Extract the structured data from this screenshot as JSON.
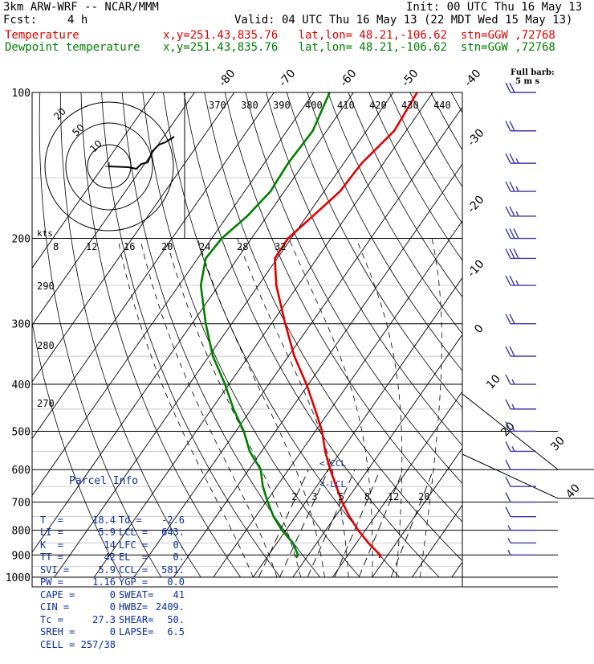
{
  "header": {
    "model": "3km ARW-WRF -- NCAR/MMM",
    "init": "Init: 00 UTC Thu 16 May 13",
    "fcst_label": "Fcst:",
    "fcst_value": "4 h",
    "valid": "Valid: 04 UTC Thu 16 May 13 (22 MDT Wed 15 May 13)",
    "legend": [
      {
        "name": "Temperature",
        "info": "x,y=251.43,835.76   lat,lon= 48.21,-106.62  stn=GGW ,72768",
        "color": "#e00000"
      },
      {
        "name": "Dewpoint temperature",
        "info": "x,y=251.43,835.76   lat,lon= 48.21,-106.62  stn=GGW ,72768",
        "color": "#008000"
      }
    ]
  },
  "full_barb_label": "Full barb:",
  "full_barb_value": "5 m s",
  "hodograph": {
    "units": "kts",
    "ring_labels": [
      "10",
      "50",
      "20"
    ]
  },
  "parcel_info": {
    "title": "Parcel Info",
    "rows": [
      [
        "T  =",
        "18.4",
        "Td =",
        "-2.6"
      ],
      [
        "LI =",
        "5.9",
        "LCL =",
        "643."
      ],
      [
        "K  =",
        "14",
        "LFC =",
        "0."
      ],
      [
        "TT =",
        "42",
        "EL  =",
        "0."
      ],
      [
        "SVI =",
        "5.9",
        "CCL =",
        "581."
      ],
      [
        "PW =",
        "1.16",
        "YGP =",
        "0.0"
      ],
      [
        "CAPE =",
        "0",
        "SWEAT=",
        "41"
      ],
      [
        "CIN =",
        "0",
        "HWBZ=",
        "2409."
      ],
      [
        "Tc =",
        "27.3",
        "SHEAR=",
        "50."
      ],
      [
        "SREH =",
        "0",
        "LAPSE=",
        "6.5"
      ],
      [
        "CELL =",
        "257/38",
        "",
        ""
      ]
    ]
  },
  "lcl_marker": "<-LCL",
  "ccl_marker": "<-CCL",
  "colors": {
    "temperature": "#e00000",
    "dewpoint": "#008000",
    "wind": "#3a3aa8",
    "stats": "#0a2fa0"
  },
  "chart_data": {
    "type": "line",
    "chart_kind": "skew-T log-P diagram",
    "y_axis": {
      "scale": "log",
      "reversed": true,
      "ylim": [
        1000,
        100
      ],
      "ticks": [
        100,
        200,
        300,
        400,
        500,
        600,
        700,
        800,
        900,
        1000
      ]
    },
    "x_axis": {
      "ticks_top": [
        -80,
        -70,
        -60,
        -50,
        -40
      ],
      "ticks_right": [
        -30,
        -20,
        -10,
        0,
        10,
        20,
        30,
        40
      ]
    },
    "dry_adiabat_labels_top": [
      370,
      380,
      390,
      400,
      410,
      420,
      430,
      440
    ],
    "dry_adiabat_labels_left": [
      290,
      280,
      270
    ],
    "hodo_speed_labels": [
      8,
      12,
      16,
      20,
      24,
      28,
      32
    ],
    "mixing_ratio_labels": [
      2,
      3,
      5,
      8,
      12,
      20
    ],
    "series": [
      {
        "name": "Temperature",
        "color": "#e00000",
        "pressure": [
          912,
          900,
          850,
          800,
          750,
          700,
          650,
          600,
          550,
          500,
          450,
          400,
          350,
          300,
          250,
          220,
          200,
          180,
          160,
          140,
          120,
          100
        ],
        "value": [
          18.4,
          18.1,
          13.0,
          8.2,
          3.6,
          -0.8,
          -5.0,
          -9.5,
          -14.0,
          -18.3,
          -24.0,
          -30.5,
          -38.5,
          -46.5,
          -55.5,
          -60.6,
          -60.8,
          -58.5,
          -56.0,
          -55.5,
          -53.0,
          -54.0
        ]
      },
      {
        "name": "Dewpoint temperature",
        "color": "#008000",
        "pressure": [
          912,
          900,
          850,
          800,
          750,
          700,
          650,
          600,
          550,
          500,
          450,
          400,
          350,
          300,
          250,
          220,
          200,
          180,
          160,
          140,
          120,
          100
        ],
        "value": [
          -2.6,
          -2.6,
          -6.0,
          -11.0,
          -15.5,
          -19.5,
          -23.5,
          -27.0,
          -33.0,
          -38.0,
          -44.5,
          -51.0,
          -59.0,
          -66.5,
          -74.5,
          -78.0,
          -77.5,
          -75.0,
          -73.5,
          -74.0,
          -73.5,
          -76.0
        ]
      }
    ],
    "wind_barbs_m_per_s": [
      {
        "p": 100,
        "speed": 20
      },
      {
        "p": 120,
        "speed": 20
      },
      {
        "p": 140,
        "speed": 25
      },
      {
        "p": 160,
        "speed": 25
      },
      {
        "p": 180,
        "speed": 25
      },
      {
        "p": 200,
        "speed": 30
      },
      {
        "p": 220,
        "speed": 30
      },
      {
        "p": 250,
        "speed": 25
      },
      {
        "p": 300,
        "speed": 20
      },
      {
        "p": 350,
        "speed": 20
      },
      {
        "p": 400,
        "speed": 15
      },
      {
        "p": 450,
        "speed": 15
      },
      {
        "p": 500,
        "speed": 15
      },
      {
        "p": 550,
        "speed": 15
      },
      {
        "p": 600,
        "speed": 10
      },
      {
        "p": 650,
        "speed": 10
      },
      {
        "p": 700,
        "speed": 10
      },
      {
        "p": 750,
        "speed": 10
      },
      {
        "p": 800,
        "speed": 5
      },
      {
        "p": 850,
        "speed": 5
      },
      {
        "p": 900,
        "speed": 5
      }
    ]
  }
}
